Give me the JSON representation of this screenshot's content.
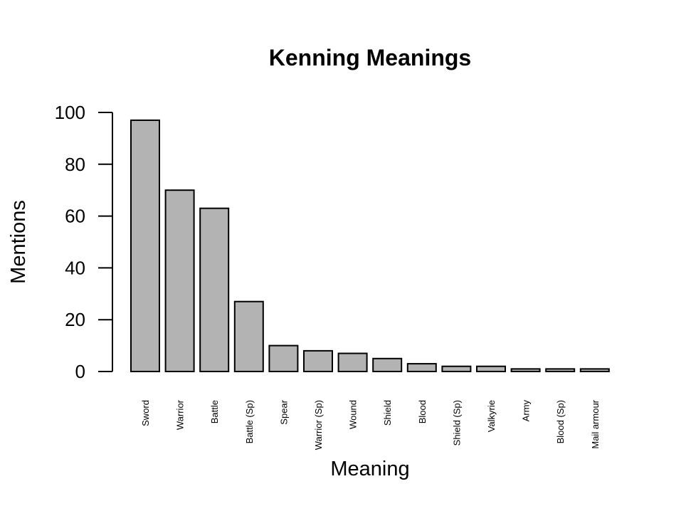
{
  "chart_data": {
    "type": "bar",
    "title": "Kenning Meanings",
    "xlabel": "Meaning",
    "ylabel": "Mentions",
    "categories": [
      "Sword",
      "Warrior",
      "Battle",
      "Battle (Sp)",
      "Spear",
      "Warrior (Sp)",
      "Wound",
      "Shield",
      "Blood",
      "Shield (Sp)",
      "Valkyrie",
      "Army",
      "Blood (Sp)",
      "Mail armour"
    ],
    "values": [
      97,
      70,
      63,
      27,
      10,
      8,
      7,
      5,
      3,
      2,
      2,
      1,
      1,
      1
    ],
    "ylim": [
      0,
      100
    ],
    "yticks": [
      0,
      20,
      40,
      60,
      80,
      100
    ],
    "bar_color": "#b3b3b3",
    "grid": false,
    "legend": false
  }
}
